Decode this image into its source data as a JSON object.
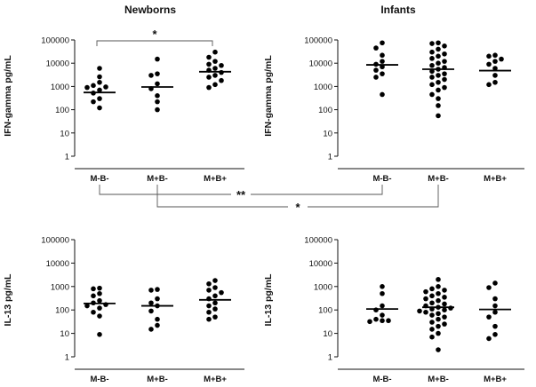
{
  "column_titles": {
    "left": "Newborns",
    "right": "Infants"
  },
  "chart_data": [
    {
      "id": "newborn-ifn",
      "type": "scatter",
      "panel": "top-left",
      "title": "",
      "ylabel": "IFN-gamma pg/mL",
      "yscale": "log",
      "ylim": [
        1,
        100000
      ],
      "yticks": [
        "1",
        "10",
        "100",
        "1000",
        "10000",
        "100000"
      ],
      "categories": [
        "M-B-",
        "M+B-",
        "M+B+"
      ],
      "medians": [
        550,
        950,
        4300
      ],
      "points": [
        [
          6000,
          2600,
          1500,
          1100,
          950,
          900,
          700,
          520,
          300,
          220,
          120
        ],
        [
          15000,
          3500,
          3000,
          1300,
          800,
          400,
          220,
          100
        ],
        [
          30000,
          18000,
          12000,
          9000,
          8000,
          6000,
          5000,
          4000,
          3000,
          2500,
          1800,
          1200,
          900
        ]
      ],
      "significance": [
        {
          "from": "M-B-",
          "to": "M+B+",
          "label": "*"
        }
      ]
    },
    {
      "id": "infant-ifn",
      "type": "scatter",
      "panel": "top-right",
      "title": "",
      "ylabel": "IFN-gamma pg/mL",
      "yscale": "log",
      "ylim": [
        1,
        100000
      ],
      "yticks": [
        "1",
        "10",
        "100",
        "1000",
        "10000",
        "100000"
      ],
      "categories": [
        "M-B-",
        "M+B-",
        "M+B+"
      ],
      "medians": [
        8500,
        5500,
        4800
      ],
      "points": [
        [
          75000,
          45000,
          22000,
          12000,
          9000,
          7000,
          5000,
          3500,
          2500,
          450
        ],
        [
          75000,
          70000,
          55000,
          40000,
          30000,
          25000,
          20000,
          16000,
          12000,
          10000,
          8000,
          6500,
          5500,
          4500,
          3500,
          3000,
          2500,
          2000,
          1500,
          1200,
          900,
          700,
          450,
          300,
          150,
          55
        ],
        [
          22000,
          20000,
          15000,
          12000,
          9000,
          6000,
          3000,
          1500,
          1200
        ]
      ],
      "significance": []
    },
    {
      "id": "newborn-il13",
      "type": "scatter",
      "panel": "bottom-left",
      "title": "",
      "ylabel": "IL-13 pg/mL",
      "yscale": "log",
      "ylim": [
        1,
        100000
      ],
      "yticks": [
        "1",
        "10",
        "100",
        "1000",
        "10000",
        "100000"
      ],
      "categories": [
        "M-B-",
        "M+B-",
        "M+B+"
      ],
      "medians": [
        190,
        150,
        270
      ],
      "points": [
        [
          850,
          800,
          500,
          400,
          250,
          200,
          170,
          150,
          120,
          80,
          55,
          9
        ],
        [
          750,
          700,
          300,
          200,
          150,
          90,
          40,
          22,
          15
        ],
        [
          1800,
          1300,
          900,
          700,
          550,
          400,
          300,
          200,
          150,
          110,
          80,
          50,
          40
        ]
      ],
      "significance": []
    },
    {
      "id": "infant-il13",
      "type": "scatter",
      "panel": "bottom-right",
      "title": "",
      "ylabel": "IL-13 pg/mL",
      "yscale": "log",
      "ylim": [
        1,
        100000
      ],
      "yticks": [
        "1",
        "10",
        "100",
        "1000",
        "10000",
        "100000"
      ],
      "categories": [
        "M-B-",
        "M+B-",
        "M+B+"
      ],
      "medians": [
        110,
        130,
        105
      ],
      "points": [
        [
          1000,
          500,
          150,
          100,
          60,
          40,
          35,
          35,
          32
        ],
        [
          2000,
          1000,
          800,
          700,
          600,
          500,
          400,
          350,
          300,
          250,
          200,
          180,
          150,
          130,
          120,
          110,
          100,
          90,
          80,
          70,
          60,
          50,
          40,
          30,
          25,
          20,
          15,
          10,
          7,
          2
        ],
        [
          1400,
          900,
          300,
          150,
          80,
          50,
          20,
          9,
          6
        ]
      ],
      "significance": []
    }
  ],
  "cross_significance": [
    {
      "from": "newborn M-B-",
      "to": "infant M-B-",
      "label": "**"
    },
    {
      "from": "newborn M+B-",
      "to": "infant M+B-",
      "label": "*"
    }
  ]
}
